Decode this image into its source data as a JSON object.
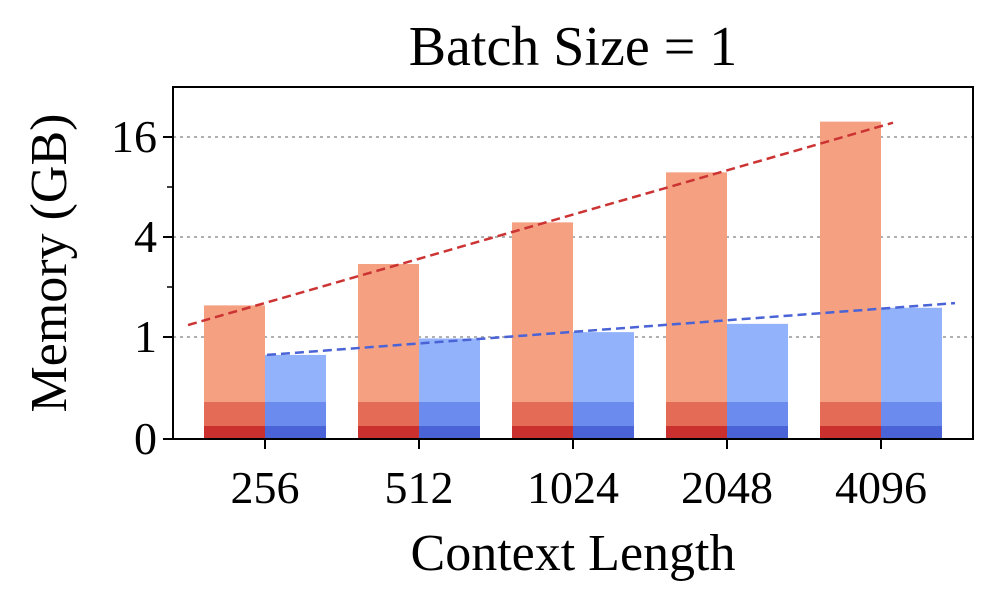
{
  "chart_data": {
    "type": "bar",
    "title": "Batch Size = 1",
    "xlabel": "Context Length",
    "ylabel": "Memory (GB)",
    "categories": [
      "256",
      "512",
      "1024",
      "2048",
      "4096"
    ],
    "y_scale": "log2 with zero baseline",
    "y_ticks": [
      "0",
      "1",
      "4",
      "16"
    ],
    "grid": "horizontal dotted at 1, 4, 16",
    "series": [
      {
        "color": "#f4a081",
        "values": [
          1.55,
          2.75,
          4.9,
          9.8,
          19.8
        ],
        "segments": [
          {
            "color": "#e46b55",
            "share": "middle band"
          },
          {
            "color": "#c9302e",
            "share": "bottom band"
          }
        ],
        "trend": {
          "style": "dashed/dotted",
          "color": "#cc3333",
          "from": 1.18,
          "to": 19.5
        }
      },
      {
        "color": "#92b2fb",
        "values": [
          0.78,
          0.98,
          1.07,
          1.2,
          1.5
        ],
        "segments": [
          {
            "color": "#6b8cee",
            "share": "middle band"
          },
          {
            "color": "#4a63d6",
            "share": "bottom band"
          }
        ],
        "trend": {
          "style": "dashed",
          "color": "#4a63d6",
          "from": 0.78,
          "to": 1.6
        }
      }
    ]
  }
}
